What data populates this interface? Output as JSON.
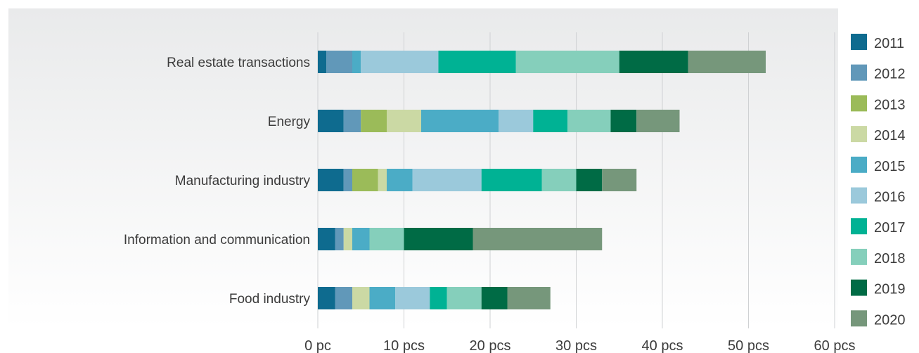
{
  "chart_data": {
    "type": "bar",
    "orientation": "horizontal",
    "stacked": true,
    "categories": [
      "Real estate transactions",
      "Energy",
      "Manufacturing industry",
      "Information and communication",
      "Food industry"
    ],
    "series": [
      {
        "name": "2011",
        "color": "#0e6b8f",
        "values": [
          1,
          3,
          3,
          2,
          2
        ]
      },
      {
        "name": "2012",
        "color": "#6198b9",
        "values": [
          3,
          2,
          1,
          1,
          2
        ]
      },
      {
        "name": "2013",
        "color": "#9bbb59",
        "values": [
          0,
          3,
          3,
          0,
          0
        ]
      },
      {
        "name": "2014",
        "color": "#cbd9a4",
        "values": [
          0,
          4,
          1,
          1,
          2
        ]
      },
      {
        "name": "2015",
        "color": "#4bacc6",
        "values": [
          1,
          9,
          3,
          2,
          3
        ]
      },
      {
        "name": "2016",
        "color": "#9bc9db",
        "values": [
          9,
          4,
          8,
          0,
          4
        ]
      },
      {
        "name": "2017",
        "color": "#00b294",
        "values": [
          9,
          4,
          7,
          0,
          2
        ]
      },
      {
        "name": "2018",
        "color": "#85cfbb",
        "values": [
          12,
          5,
          4,
          4,
          4
        ]
      },
      {
        "name": "2019",
        "color": "#006b45",
        "values": [
          8,
          3,
          3,
          8,
          3
        ]
      },
      {
        "name": "2020",
        "color": "#76977b",
        "values": [
          9,
          5,
          4,
          15,
          5
        ]
      }
    ],
    "x_ticks": [
      "0 pc",
      "10 pcs",
      "20 pcs",
      "30 pcs",
      "40 pcs",
      "50 pcs",
      "60 pcs"
    ],
    "xlim": [
      0,
      60
    ],
    "grid": true,
    "legend_position": "right",
    "title": "",
    "xlabel": "",
    "ylabel": ""
  }
}
